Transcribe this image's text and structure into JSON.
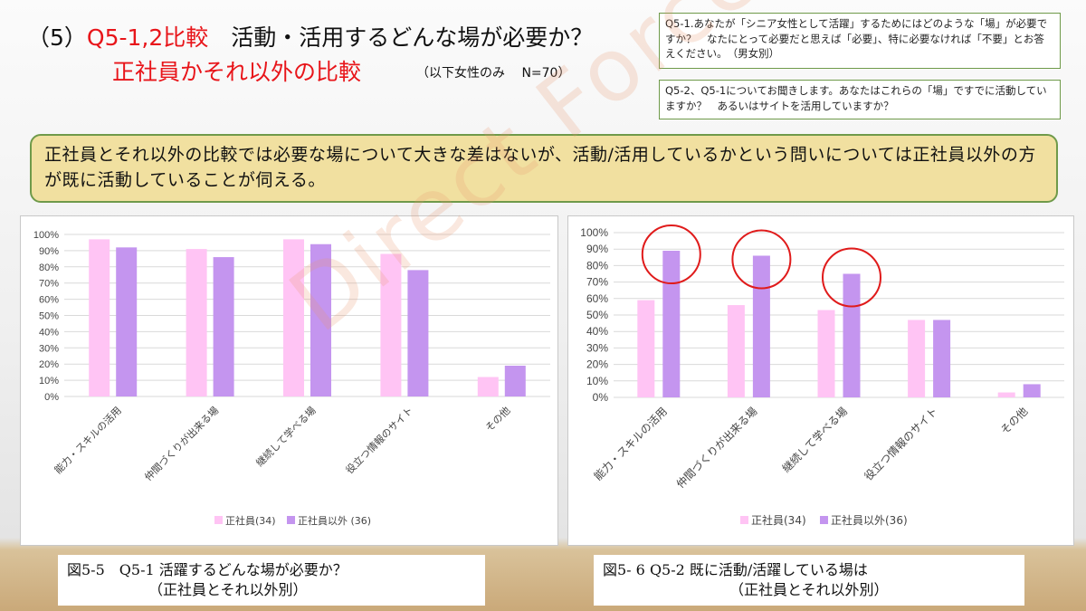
{
  "header": {
    "title_prefix": "（5）",
    "title_code": "Q5-1,2比較",
    "title_rest": "　活動・活用するどんな場が必要か？",
    "title_line2": "正社員かそれ以外の比較",
    "subtitle": "（以下女性のみ　 N=70）"
  },
  "questions": {
    "q1": "Q5-1.あなたが「シニア女性として活躍」するためにはどのような「場」が必要ですか？　なたにとって必要だと思えば「必要」、特に必要なければ「不要」とお答えください。　（男女別）",
    "q2": "Q5-2、Q5-1についてお聞きします。あなたはこれらの「場」ですでに活動していますか？　あるいはサイトを活用していますか？"
  },
  "summary": "正社員とそれ以外の比較では必要な場について大きな差はないが、活動/活用しているかという問いについては正社員以外の方が既に活動していることが伺える。",
  "watermark": "Direct Force",
  "colors": {
    "series1": "#ffc4f4",
    "series2": "#c495ef",
    "circle": "#e01b1b",
    "grid": "#d9d9d9"
  },
  "chart_data": [
    {
      "type": "bar",
      "categories": [
        "能力・スキルの活用",
        "仲間づくりが出来る場",
        "継続して学べる場",
        "役立つ情報のサイト",
        "その他"
      ],
      "series": [
        {
          "name": "正社員(34)",
          "values": [
            97,
            91,
            97,
            88,
            12
          ]
        },
        {
          "name": "正社員以外 (36)",
          "values": [
            92,
            86,
            94,
            78,
            19
          ]
        }
      ],
      "ylim": [
        0,
        100
      ],
      "yticks": [
        "0%",
        "10%",
        "20%",
        "30%",
        "40%",
        "50%",
        "60%",
        "70%",
        "80%",
        "90%",
        "100%"
      ],
      "legend_position": "bottom",
      "caption_line1": "図5-5　Q5-1 活躍するどんな場が必要か？",
      "caption_line2": "（正社員とそれ以外別）"
    },
    {
      "type": "bar",
      "categories": [
        "能力・スキルの活用",
        "仲間づくりが出来る場",
        "継続して学べる場",
        "役立つ情報のサイト",
        "その他"
      ],
      "series": [
        {
          "name": "正社員(34)",
          "values": [
            59,
            56,
            53,
            47,
            3
          ]
        },
        {
          "name": "正社員以外(36)",
          "values": [
            89,
            86,
            75,
            47,
            8
          ]
        }
      ],
      "highlighted_categories": [
        0,
        1,
        2
      ],
      "ylim": [
        0,
        100
      ],
      "yticks": [
        "0%",
        "10%",
        "20%",
        "30%",
        "40%",
        "50%",
        "60%",
        "70%",
        "80%",
        "90%",
        "100%"
      ],
      "legend_position": "bottom",
      "caption_line1": "図5- 6  Q5-2 既に活動/活躍している場は",
      "caption_line2": "（正社員とそれ以外別）"
    }
  ]
}
